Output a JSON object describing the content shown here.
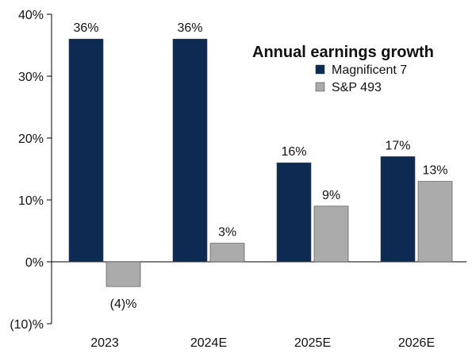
{
  "chart_data": {
    "type": "bar",
    "title": "Annual earnings growth",
    "categories": [
      "2023",
      "2024E",
      "2025E",
      "2026E"
    ],
    "series": [
      {
        "name": "Magnificent 7",
        "color": "#0d2a52",
        "values": [
          36,
          36,
          16,
          17
        ],
        "labels": [
          "36%",
          "36%",
          "16%",
          "17%"
        ]
      },
      {
        "name": "S&P 493",
        "color": "#ababab",
        "values": [
          -4,
          3,
          9,
          13
        ],
        "labels": [
          "(4)%",
          "3%",
          "9%",
          "13%"
        ]
      }
    ],
    "y_ticks": [
      {
        "value": 40,
        "label": "40%"
      },
      {
        "value": 30,
        "label": "30%"
      },
      {
        "value": 20,
        "label": "20%"
      },
      {
        "value": 10,
        "label": "10%"
      },
      {
        "value": 0,
        "label": "0%"
      },
      {
        "value": -10,
        "label": "(10)%"
      }
    ],
    "ylim": [
      -10,
      40
    ],
    "xlabel": "",
    "ylabel": "",
    "legend_position": "top-right",
    "grid": false
  }
}
